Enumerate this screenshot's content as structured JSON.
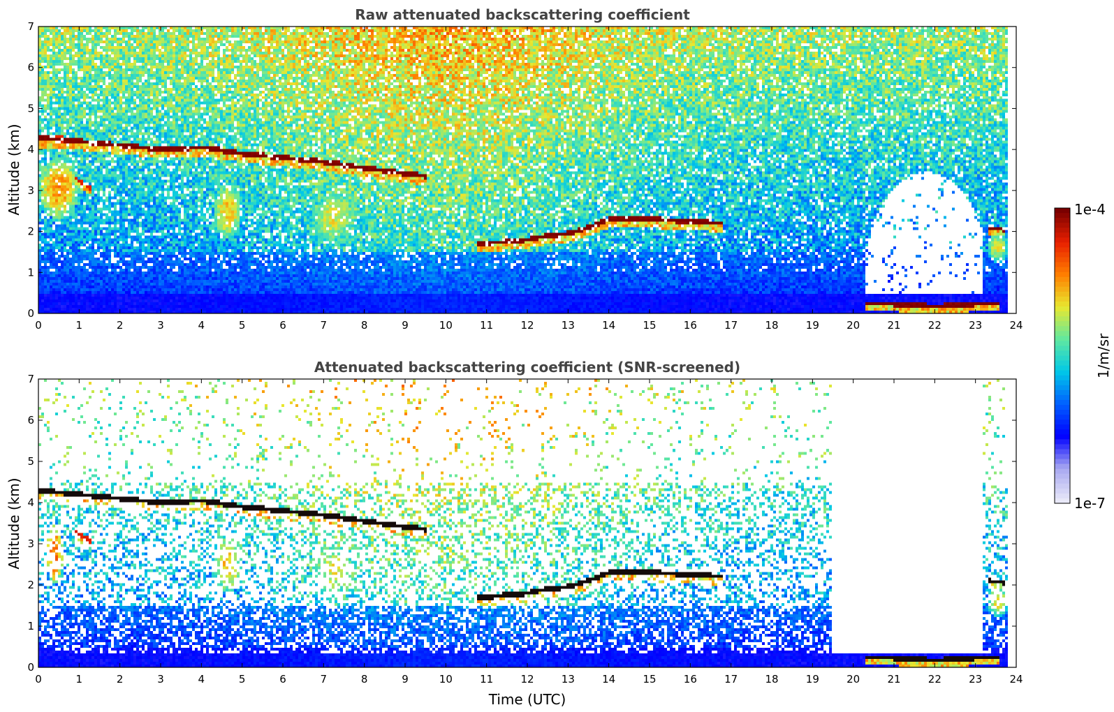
{
  "chart_data": [
    {
      "type": "heatmap",
      "title": "Raw attenuated backscattering coefficient",
      "xlabel": "",
      "ylabel": "Altitude (km)",
      "xlim": [
        0,
        24
      ],
      "ylim": [
        0,
        7
      ],
      "x_ticks": [
        "0",
        "1",
        "2",
        "3",
        "4",
        "5",
        "6",
        "7",
        "8",
        "9",
        "10",
        "11",
        "12",
        "13",
        "14",
        "15",
        "16",
        "17",
        "18",
        "19",
        "20",
        "21",
        "22",
        "23",
        "24"
      ],
      "y_ticks": [
        "0",
        "1",
        "2",
        "3",
        "4",
        "5",
        "6",
        "7"
      ],
      "screened": false,
      "color_scale": "log",
      "features": [
        {
          "kind": "layer",
          "points": [
            [
              0.0,
              4.3
            ],
            [
              1.0,
              4.2
            ],
            [
              2.0,
              4.1
            ],
            [
              3.0,
              4.0
            ],
            [
              4.0,
              4.05
            ],
            [
              5.0,
              3.9
            ],
            [
              6.0,
              3.8
            ],
            [
              7.0,
              3.7
            ],
            [
              8.0,
              3.55
            ],
            [
              8.7,
              3.45
            ],
            [
              9.5,
              3.35
            ]
          ],
          "level": 1.0,
          "thickness_km": 0.12
        },
        {
          "kind": "layer",
          "points": [
            [
              10.8,
              1.7
            ],
            [
              11.5,
              1.75
            ],
            [
              12.0,
              1.8
            ],
            [
              12.5,
              1.9
            ],
            [
              13.0,
              1.95
            ],
            [
              13.5,
              2.1
            ],
            [
              14.0,
              2.3
            ],
            [
              14.5,
              2.3
            ],
            [
              15.0,
              2.3
            ],
            [
              16.0,
              2.25
            ],
            [
              16.8,
              2.2
            ]
          ],
          "level": 1.0,
          "thickness_km": 0.12
        },
        {
          "kind": "layer",
          "points": [
            [
              20.3,
              0.25
            ],
            [
              21.0,
              0.22
            ],
            [
              22.0,
              0.18
            ],
            [
              23.0,
              0.22
            ],
            [
              23.6,
              0.25
            ]
          ],
          "level": 1.0,
          "thickness_km": 0.1
        },
        {
          "kind": "layer",
          "points": [
            [
              0.0,
              4.3
            ],
            [
              0.6,
              4.25
            ]
          ],
          "level": 0.9,
          "thickness_km": 0.15
        },
        {
          "kind": "layer",
          "points": [
            [
              0.9,
              3.3
            ],
            [
              1.3,
              3.05
            ]
          ],
          "level": 0.9,
          "thickness_km": 0.1
        },
        {
          "kind": "layer",
          "points": [
            [
              23.3,
              2.1
            ],
            [
              23.7,
              2.05
            ]
          ],
          "level": 1.0,
          "thickness_km": 0.1
        },
        {
          "kind": "plume",
          "x": [
            0.0,
            1.0
          ],
          "y": [
            2.3,
            3.8
          ],
          "level": 0.7
        },
        {
          "kind": "plume",
          "x": [
            4.3,
            5.0
          ],
          "y": [
            1.8,
            3.2
          ],
          "level": 0.65
        },
        {
          "kind": "plume",
          "x": [
            6.7,
            7.8
          ],
          "y": [
            1.7,
            3.0
          ],
          "level": 0.6
        },
        {
          "kind": "plume",
          "x": [
            23.3,
            23.8
          ],
          "y": [
            1.2,
            2.0
          ],
          "level": 0.6
        }
      ]
    },
    {
      "type": "heatmap",
      "title": "Attenuated backscattering coefficient (SNR-screened)",
      "xlabel": "Time (UTC)",
      "ylabel": "Altitude (km)",
      "xlim": [
        0,
        24
      ],
      "ylim": [
        0,
        7
      ],
      "x_ticks": [
        "0",
        "1",
        "2",
        "3",
        "4",
        "5",
        "6",
        "7",
        "8",
        "9",
        "10",
        "11",
        "12",
        "13",
        "14",
        "15",
        "16",
        "17",
        "18",
        "19",
        "20",
        "21",
        "22",
        "23",
        "24"
      ],
      "y_ticks": [
        "0",
        "1",
        "2",
        "3",
        "4",
        "5",
        "6",
        "7"
      ],
      "screened": true,
      "color_scale": "log",
      "features": [
        {
          "kind": "layer",
          "points": [
            [
              0.0,
              4.3
            ],
            [
              1.0,
              4.2
            ],
            [
              2.0,
              4.1
            ],
            [
              3.0,
              4.0
            ],
            [
              4.0,
              4.05
            ],
            [
              5.0,
              3.9
            ],
            [
              6.0,
              3.8
            ],
            [
              7.0,
              3.7
            ],
            [
              8.0,
              3.55
            ],
            [
              8.7,
              3.45
            ],
            [
              9.5,
              3.35
            ]
          ],
          "level": 1.0,
          "thickness_km": 0.12
        },
        {
          "kind": "layer",
          "points": [
            [
              10.8,
              1.7
            ],
            [
              11.5,
              1.75
            ],
            [
              12.0,
              1.8
            ],
            [
              12.5,
              1.9
            ],
            [
              13.0,
              1.95
            ],
            [
              13.5,
              2.1
            ],
            [
              14.0,
              2.3
            ],
            [
              14.5,
              2.3
            ],
            [
              15.0,
              2.3
            ],
            [
              16.0,
              2.25
            ],
            [
              16.8,
              2.2
            ]
          ],
          "level": 1.0,
          "thickness_km": 0.12
        },
        {
          "kind": "layer",
          "points": [
            [
              20.3,
              0.25
            ],
            [
              21.0,
              0.22
            ],
            [
              22.0,
              0.18
            ],
            [
              23.0,
              0.22
            ],
            [
              23.6,
              0.25
            ]
          ],
          "level": 1.0,
          "thickness_km": 0.1
        },
        {
          "kind": "layer",
          "points": [
            [
              0.9,
              3.3
            ],
            [
              1.3,
              3.05
            ]
          ],
          "level": 0.9,
          "thickness_km": 0.1
        },
        {
          "kind": "layer",
          "points": [
            [
              23.3,
              2.1
            ],
            [
              23.7,
              2.05
            ]
          ],
          "level": 1.0,
          "thickness_km": 0.1
        },
        {
          "kind": "plume",
          "x": [
            0.2,
            0.6
          ],
          "y": [
            2.0,
            3.5
          ],
          "level": 0.75
        },
        {
          "kind": "plume",
          "x": [
            4.3,
            5.0
          ],
          "y": [
            1.8,
            3.2
          ],
          "level": 0.65
        },
        {
          "kind": "plume",
          "x": [
            6.7,
            7.8
          ],
          "y": [
            1.7,
            3.0
          ],
          "level": 0.6
        },
        {
          "kind": "plume",
          "x": [
            23.3,
            23.8
          ],
          "y": [
            1.2,
            2.0
          ],
          "level": 0.6
        }
      ]
    }
  ],
  "colorbar": {
    "label": "1/m/sr",
    "max_label": "1e-4",
    "min_label": "1e-7",
    "colors": [
      "#e8e8f8",
      "#a8a8f0",
      "#0000ff",
      "#0060ff",
      "#00c8e8",
      "#60e8a0",
      "#e8e830",
      "#ff8000",
      "#e82000",
      "#7a0000"
    ]
  }
}
